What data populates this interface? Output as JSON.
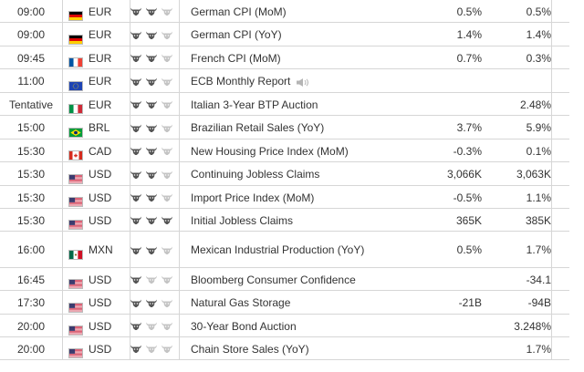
{
  "rows": [
    {
      "time": "09:00",
      "flag": "de",
      "currency": "EUR",
      "importance": 2,
      "event": "German CPI (MoM)",
      "actual": "0.5%",
      "forecast": "0.5%"
    },
    {
      "time": "09:00",
      "flag": "de",
      "currency": "EUR",
      "importance": 2,
      "event": "German CPI (YoY)",
      "actual": "1.4%",
      "forecast": "1.4%"
    },
    {
      "time": "09:45",
      "flag": "fr",
      "currency": "EUR",
      "importance": 2,
      "event": "French CPI (MoM)",
      "actual": "0.7%",
      "forecast": "0.3%"
    },
    {
      "time": "11:00",
      "flag": "eu",
      "currency": "EUR",
      "importance": 2,
      "event": "ECB Monthly Report",
      "speech": true,
      "actual": "",
      "forecast": ""
    },
    {
      "time": "Tentative",
      "flag": "it",
      "currency": "EUR",
      "importance": 2,
      "event": "Italian 3-Year BTP Auction",
      "actual": "",
      "forecast": "2.48%"
    },
    {
      "time": "15:00",
      "flag": "br",
      "currency": "BRL",
      "importance": 2,
      "event": "Brazilian Retail Sales (YoY)",
      "actual": "3.7%",
      "forecast": "5.9%"
    },
    {
      "time": "15:30",
      "flag": "ca",
      "currency": "CAD",
      "importance": 2,
      "event": "New Housing Price Index (MoM)",
      "actual": "-0.3%",
      "forecast": "0.1%"
    },
    {
      "time": "15:30",
      "flag": "us",
      "currency": "USD",
      "importance": 2,
      "event": "Continuing Jobless Claims",
      "actual": "3,066K",
      "forecast": "3,063K"
    },
    {
      "time": "15:30",
      "flag": "us",
      "currency": "USD",
      "importance": 2,
      "event": "Import Price Index (MoM)",
      "actual": "-0.5%",
      "forecast": "1.1%"
    },
    {
      "time": "15:30",
      "flag": "us",
      "currency": "USD",
      "importance": 3,
      "event": "Initial Jobless Claims",
      "actual": "365K",
      "forecast": "385K"
    },
    {
      "time": "16:00",
      "flag": "mx",
      "currency": "MXN",
      "importance": 2,
      "event": "Mexican Industrial Production (YoY)",
      "actual": "0.5%",
      "forecast": "1.7%"
    },
    {
      "time": "16:45",
      "flag": "us",
      "currency": "USD",
      "importance": 1,
      "event": "Bloomberg Consumer Confidence",
      "actual": "",
      "forecast": "-34.1"
    },
    {
      "time": "17:30",
      "flag": "us",
      "currency": "USD",
      "importance": 2,
      "event": "Natural Gas Storage",
      "actual": "-21B",
      "forecast": "-94B"
    },
    {
      "time": "20:00",
      "flag": "us",
      "currency": "USD",
      "importance": 1,
      "event": "30-Year Bond Auction",
      "actual": "",
      "forecast": "3.248%"
    },
    {
      "time": "20:00",
      "flag": "us",
      "currency": "USD",
      "importance": 1,
      "event": "Chain Store Sales (YoY)",
      "actual": "",
      "forecast": "1.7%"
    }
  ],
  "colors": {
    "bull_active": "#555555",
    "bull_inactive": "#c4c4c4",
    "border": "#d6d6d6",
    "text": "#333333"
  },
  "icons": {
    "importance": "bull-icon",
    "speech": "speaker-icon"
  }
}
